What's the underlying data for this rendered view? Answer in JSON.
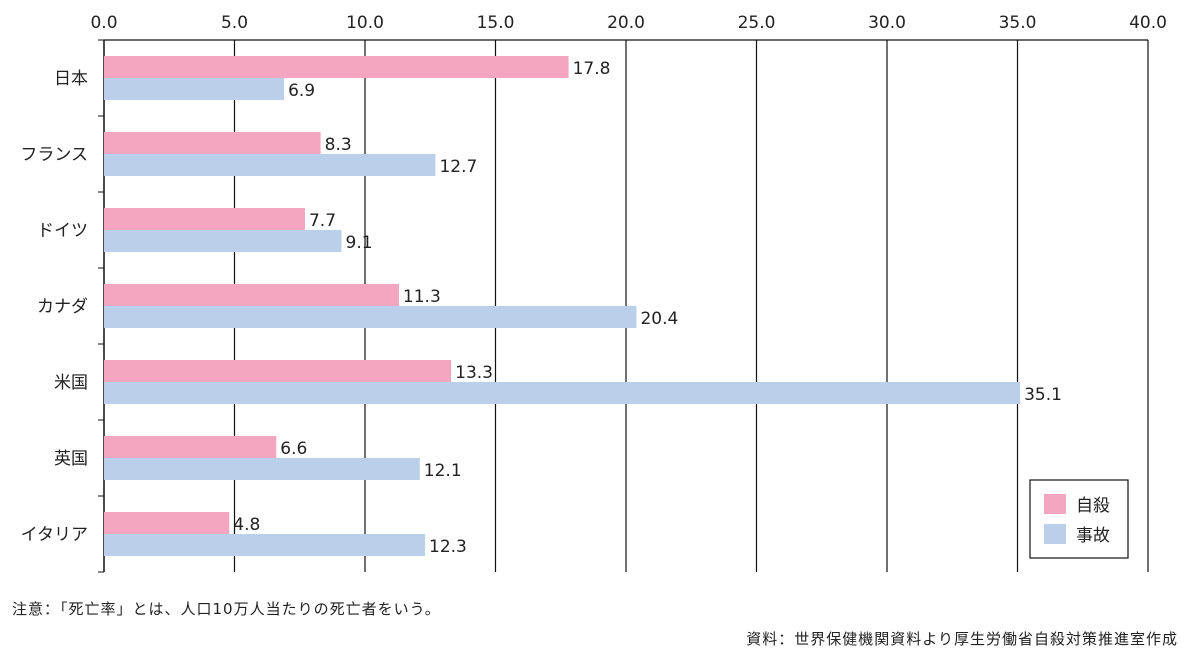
{
  "chart_data": {
    "type": "bar",
    "orientation": "horizontal",
    "title": "",
    "xlabel": "",
    "ylabel": "",
    "xlim": [
      0,
      40
    ],
    "x_ticks": [
      "0.0",
      "5.0",
      "10.0",
      "15.0",
      "20.0",
      "25.0",
      "30.0",
      "35.0",
      "40.0"
    ],
    "x_axis_position": "top",
    "grid": "vertical",
    "categories": [
      "日本",
      "フランス",
      "ドイツ",
      "カナダ",
      "米国",
      "英国",
      "イタリア"
    ],
    "series": [
      {
        "name": "自殺",
        "color": "#f4a6c0",
        "values": [
          17.8,
          8.3,
          7.7,
          11.3,
          13.3,
          6.6,
          4.8
        ],
        "labels": [
          "17.8",
          "8.3",
          "7.7",
          "11.3",
          "13.3",
          "6.6",
          "4.8"
        ]
      },
      {
        "name": "事故",
        "color": "#b9cfea",
        "values": [
          6.9,
          12.7,
          9.1,
          20.4,
          35.1,
          12.1,
          12.3
        ],
        "labels": [
          "6.9",
          "12.7",
          "9.1",
          "20.4",
          "35.1",
          "12.1",
          "12.3"
        ]
      }
    ],
    "legend_position": "bottom-right"
  },
  "note": "注意：「死亡率」とは、人口10万人当たりの死亡者をいう。",
  "source": "資料：世界保健機関資料より厚生労働省自殺対策推進室作成"
}
